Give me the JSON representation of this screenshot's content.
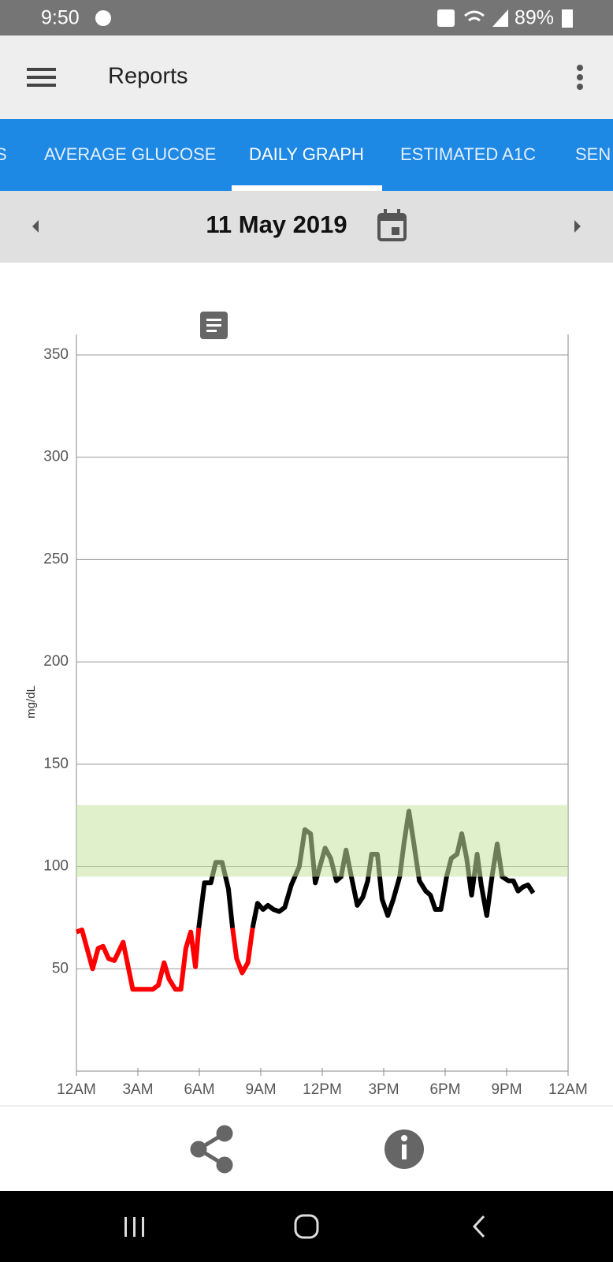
{
  "status_bar": {
    "time": "9:50",
    "battery": "89%"
  },
  "app_bar": {
    "title": "Reports"
  },
  "tabs": [
    "S",
    "AVERAGE GLUCOSE",
    "DAILY GRAPH",
    "ESTIMATED A1C",
    "SEN"
  ],
  "date_bar": {
    "date": "11 May 2019"
  },
  "chart_data": {
    "type": "line",
    "y_label": "mg/dL",
    "x": [
      0,
      0.27,
      0.79,
      1.06,
      1.3,
      1.57,
      1.85,
      2.28,
      2.75,
      3.73,
      4.0,
      4.28,
      4.52,
      4.83,
      5.1,
      5.34,
      5.58,
      5.81,
      5.97,
      6.25,
      6.56,
      6.8,
      7.11,
      7.42,
      7.62,
      7.82,
      8.09,
      8.37,
      8.6,
      8.84,
      9.11,
      9.35,
      9.62,
      9.9,
      10.17,
      10.49,
      10.88,
      11.15,
      11.43,
      11.66,
      12.14,
      12.41,
      12.69,
      12.92,
      13.16,
      13.4,
      13.71,
      13.98,
      14.22,
      14.41,
      14.69,
      14.92,
      15.2,
      15.47,
      15.78,
      16.0,
      16.23,
      16.46,
      16.74,
      17.05,
      17.28,
      17.52,
      17.79,
      18.07,
      18.3,
      18.58,
      18.81,
      19.05,
      19.29,
      19.56,
      19.76,
      20.03,
      20.3,
      20.54,
      20.78,
      21.09,
      21.33,
      21.56,
      21.8,
      22.04,
      22.3
    ],
    "series": [
      {
        "color": "#ff0000",
        "values": [
          68,
          69,
          50,
          60,
          61,
          55,
          54,
          63,
          40,
          40,
          42,
          53,
          45,
          40,
          40,
          60,
          68,
          51,
          70,
          null,
          null,
          null,
          null,
          null,
          70,
          55,
          48,
          53,
          70,
          null,
          null,
          null,
          null,
          null,
          null,
          null,
          null,
          null,
          null,
          null,
          null,
          null,
          null,
          null,
          null,
          null,
          null,
          null,
          null,
          null,
          null,
          null,
          null,
          null,
          null,
          null,
          null,
          null,
          null,
          null,
          null,
          null,
          null,
          null,
          null,
          null,
          null,
          null,
          null,
          null,
          null,
          null,
          null,
          null,
          null,
          null,
          null,
          null,
          null,
          null,
          null
        ]
      },
      {
        "color": "#000000",
        "values": [
          null,
          null,
          null,
          null,
          null,
          null,
          null,
          null,
          null,
          null,
          null,
          null,
          null,
          null,
          null,
          null,
          null,
          null,
          70,
          92,
          92,
          102,
          102,
          89,
          70,
          null,
          null,
          null,
          70,
          82,
          79,
          81,
          79,
          78,
          80,
          91,
          100,
          118,
          116,
          92,
          109,
          104,
          93,
          95,
          108,
          96,
          81,
          85,
          93,
          106,
          106,
          84,
          76,
          84,
          95,
          112,
          127,
          112,
          93,
          88,
          86,
          79,
          79,
          95,
          104,
          106,
          116,
          104,
          86,
          106,
          91,
          76,
          96,
          111,
          95,
          93,
          93,
          88,
          90,
          91,
          87
        ]
      }
    ],
    "target_range": [
      95,
      130
    ],
    "target_color": "#c5e3a0",
    "xlim": [
      0,
      24
    ],
    "xticks": [
      {
        "value": 0,
        "label": "12AM"
      },
      {
        "value": 3,
        "label": "3AM"
      },
      {
        "value": 6,
        "label": "6AM"
      },
      {
        "value": 9,
        "label": "9AM"
      },
      {
        "value": 12,
        "label": "12PM"
      },
      {
        "value": 15,
        "label": "3PM"
      },
      {
        "value": 18,
        "label": "6PM"
      },
      {
        "value": 21,
        "label": "9PM"
      },
      {
        "value": 24,
        "label": "12AM"
      }
    ],
    "ylim": [
      0,
      360
    ],
    "yticks": [
      50,
      100,
      150,
      200,
      250,
      300,
      350
    ],
    "grid": true
  }
}
